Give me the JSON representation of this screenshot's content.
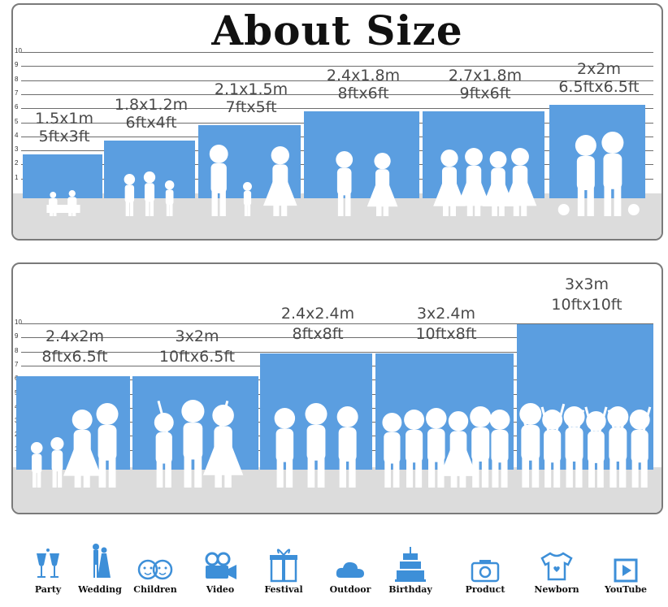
{
  "title": "About Size",
  "scale_labels": [
    "10",
    "9",
    "8",
    "7",
    "6",
    "5",
    "4",
    "3",
    "2",
    "1"
  ],
  "colors": {
    "backdrop": "#5b9ee0",
    "floor": "#dcdcdc",
    "icon_blue": "#3d8fd8"
  },
  "row1": [
    {
      "metric": "1.5x1m",
      "imperial": "5ftx3ft",
      "scene": "kids-reading"
    },
    {
      "metric": "1.8x1.2m",
      "imperial": "6ftx4ft",
      "scene": "children-running"
    },
    {
      "metric": "2.1x1.5m",
      "imperial": "7ftx5ft",
      "scene": "family-walking"
    },
    {
      "metric": "2.4x1.8m",
      "imperial": "8ftx6ft",
      "scene": "wedding-couple"
    },
    {
      "metric": "2.7x1.8m",
      "imperial": "9ftx6ft",
      "scene": "women-group"
    },
    {
      "metric": "2x2m",
      "imperial": "6.5ftx6.5ft",
      "scene": "couple-with-pets"
    }
  ],
  "row2": [
    {
      "metric": "2.4x2m",
      "imperial": "8ftx6.5ft",
      "scene": "family-four"
    },
    {
      "metric": "3x2m",
      "imperial": "10ftx6.5ft",
      "scene": "parents-lifting-child"
    },
    {
      "metric": "2.4x2.4m",
      "imperial": "8ftx8ft",
      "scene": "adults-standing"
    },
    {
      "metric": "3x2.4m",
      "imperial": "10ftx8ft",
      "scene": "group-of-friends"
    },
    {
      "metric": "3x3m",
      "imperial": "10ftx10ft",
      "scene": "graduates-throwing-caps"
    }
  ],
  "icons": [
    {
      "label": "Party",
      "icon": "cheers-glasses-icon"
    },
    {
      "label": "Wedding",
      "icon": "wedding-couple-icon"
    },
    {
      "label": "Children",
      "icon": "children-faces-icon"
    },
    {
      "label": "Video",
      "icon": "video-camera-icon"
    },
    {
      "label": "Festival",
      "icon": "gift-box-icon"
    },
    {
      "label": "Outdoor",
      "icon": "cloud-icon"
    },
    {
      "label": "Birthday",
      "icon": "birthday-cake-icon"
    },
    {
      "label": "Product",
      "icon": "camera-icon"
    },
    {
      "label": "Newborn",
      "icon": "baby-onesie-icon"
    },
    {
      "label": "YouTube",
      "icon": "play-button-icon"
    }
  ]
}
